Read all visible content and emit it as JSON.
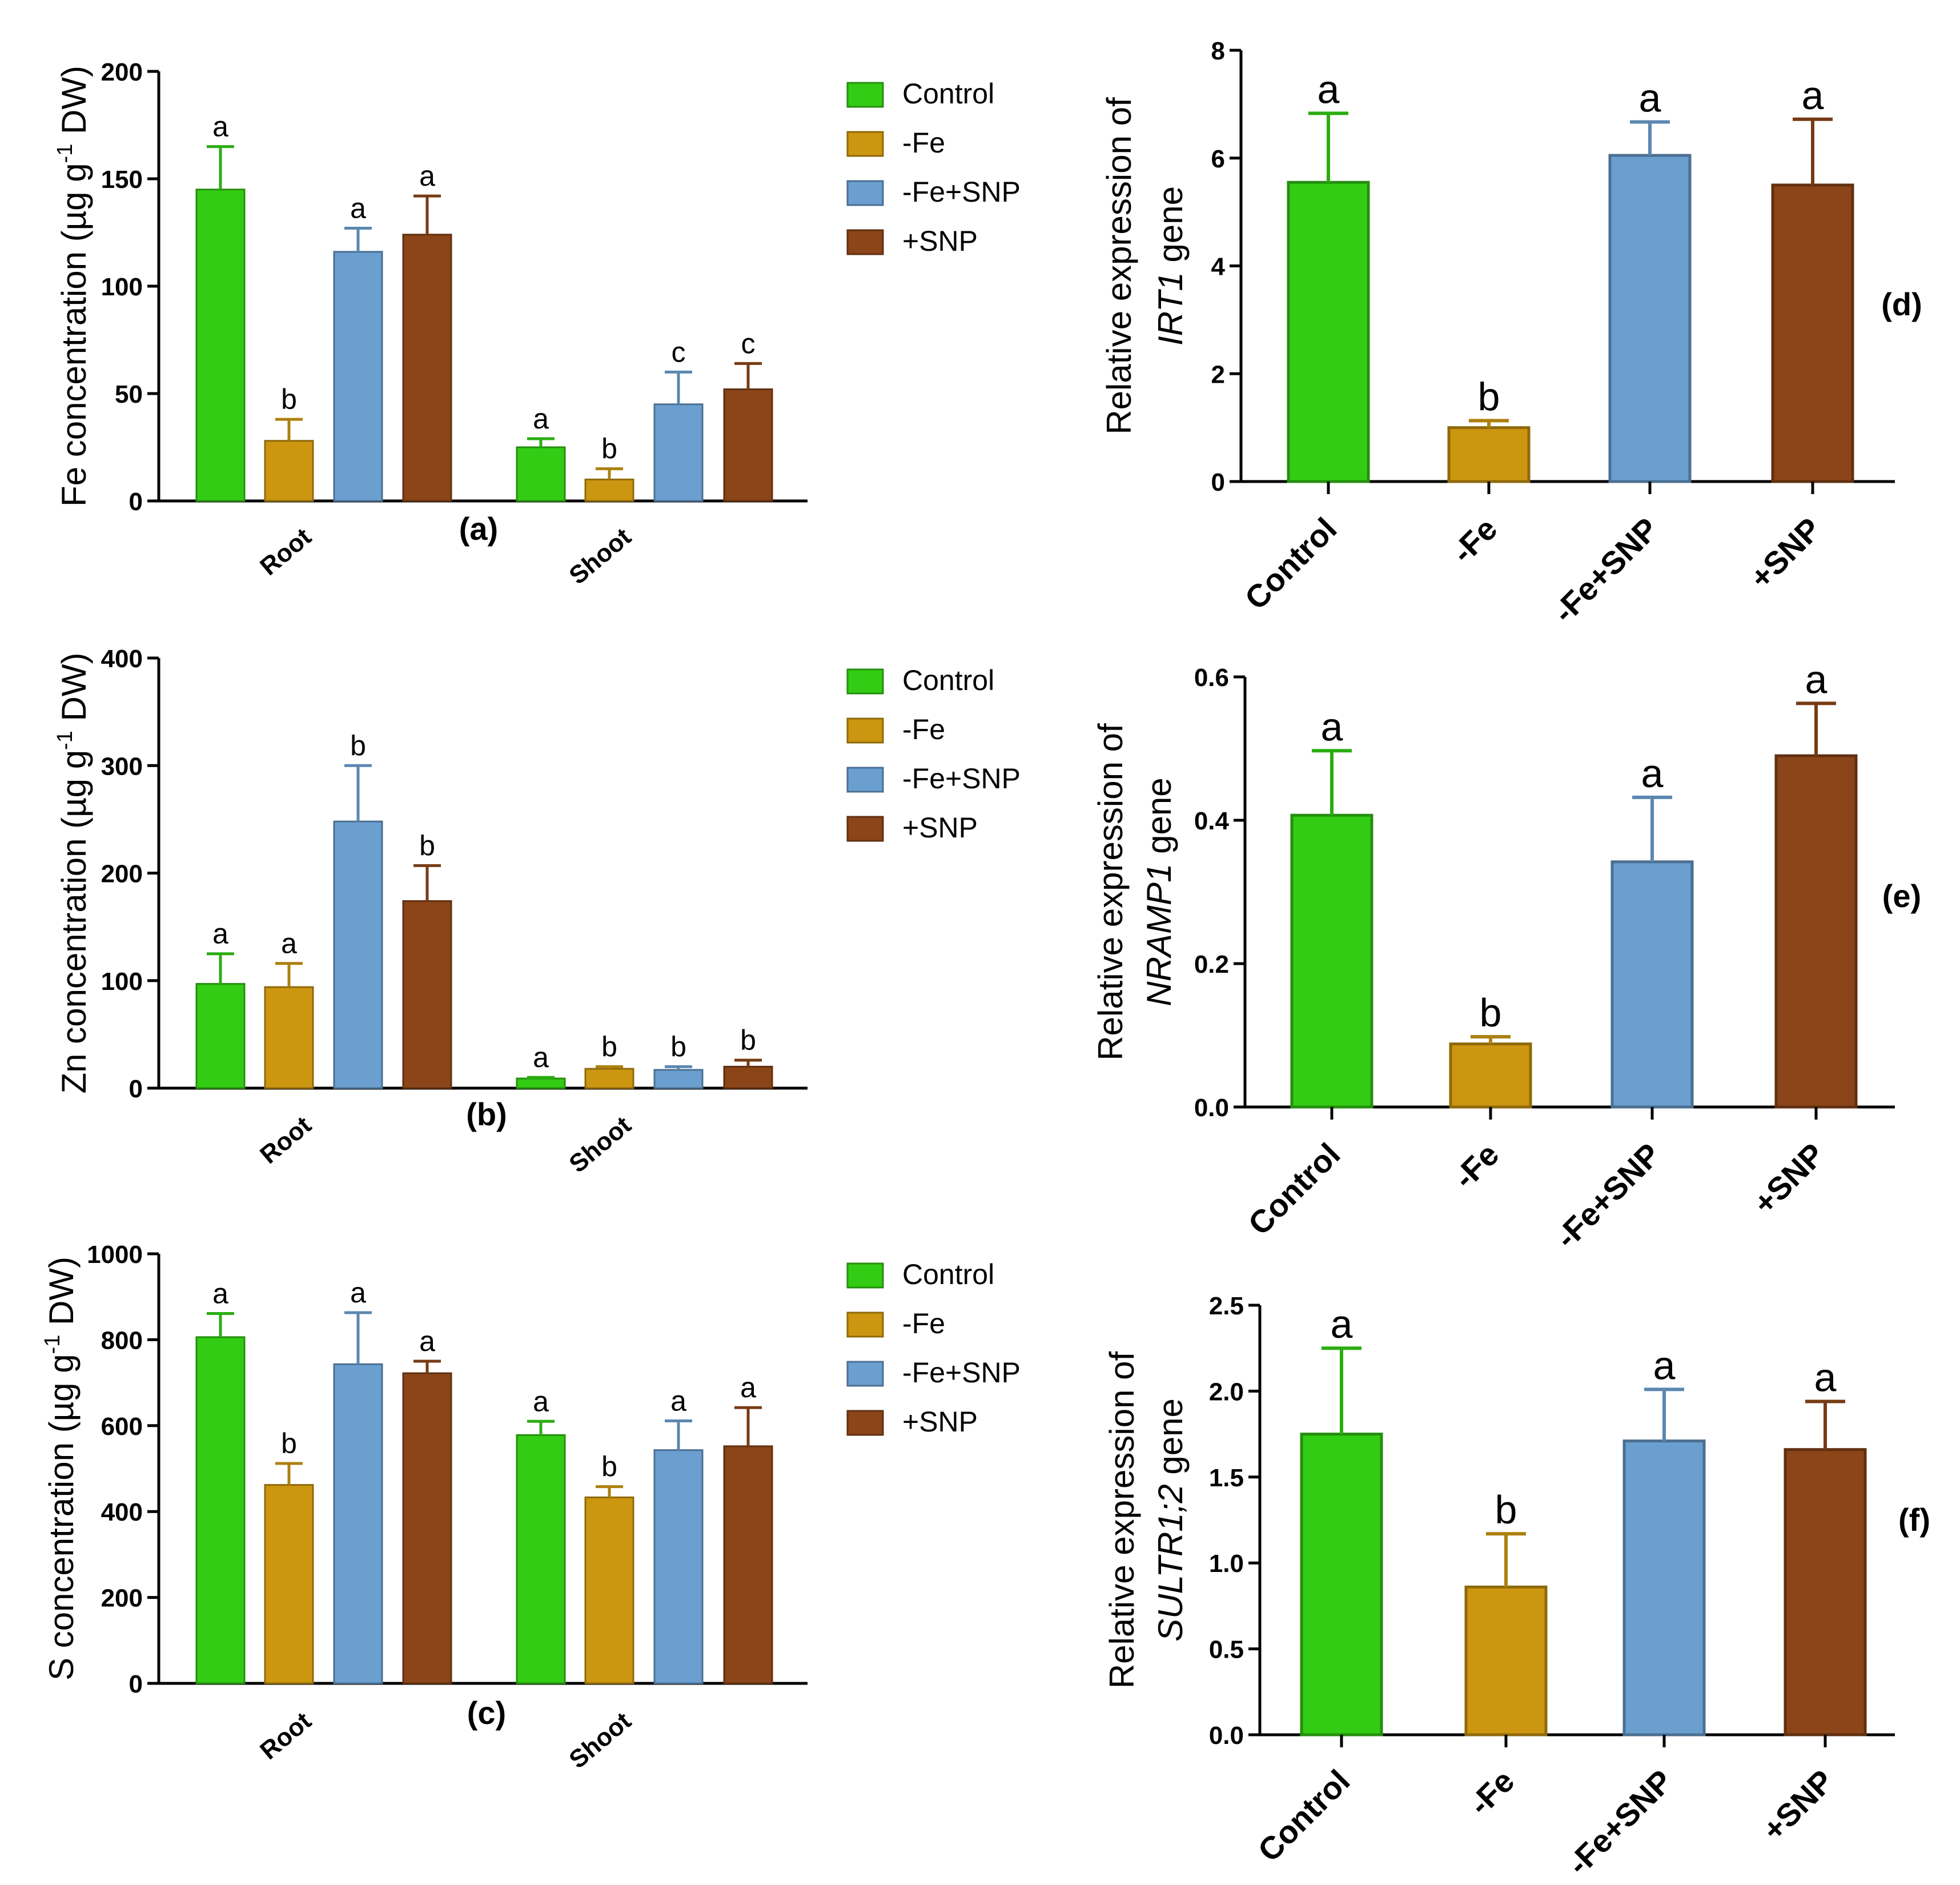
{
  "colors": {
    "Control": "#33cc14",
    "-Fe": "#cc9610",
    "-Fe+SNP": "#6b9fd0",
    "+SNP": "#8b4518"
  },
  "chart_data": [
    {
      "id": "a",
      "type": "bar",
      "panel_label": "(a)",
      "ylabel_parts": [
        "Fe concentration (µg g",
        "-1",
        " DW)"
      ],
      "ylim": [
        0,
        200
      ],
      "yticks": [
        0,
        50,
        100,
        150,
        200
      ],
      "groups": [
        "Root",
        "Shoot"
      ],
      "legend": [
        "Control",
        "-Fe",
        "-Fe+SNP",
        "+SNP"
      ],
      "series": [
        {
          "name": "Control",
          "values": [
            145,
            25
          ],
          "errors": [
            20,
            4
          ],
          "letters": [
            "a",
            "a"
          ]
        },
        {
          "name": "-Fe",
          "values": [
            28,
            10
          ],
          "errors": [
            10,
            5
          ],
          "letters": [
            "b",
            "b"
          ]
        },
        {
          "name": "-Fe+SNP",
          "values": [
            116,
            45
          ],
          "errors": [
            11,
            15
          ],
          "letters": [
            "a",
            "c"
          ]
        },
        {
          "name": "+SNP",
          "values": [
            124,
            52
          ],
          "errors": [
            18,
            12
          ],
          "letters": [
            "a",
            "c"
          ]
        }
      ]
    },
    {
      "id": "b",
      "type": "bar",
      "panel_label": "(b)",
      "ylabel_parts": [
        "Zn concentration (µg g",
        "-1",
        " DW)"
      ],
      "ylim": [
        0,
        400
      ],
      "yticks": [
        0,
        100,
        200,
        300,
        400
      ],
      "groups": [
        "Root",
        "Shoot"
      ],
      "legend": [
        "Control",
        "-Fe",
        "-Fe+SNP",
        "+SNP"
      ],
      "series": [
        {
          "name": "Control",
          "values": [
            97,
            9
          ],
          "errors": [
            28,
            1
          ],
          "letters": [
            "a",
            "a"
          ]
        },
        {
          "name": "-Fe",
          "values": [
            94,
            18
          ],
          "errors": [
            22,
            2
          ],
          "letters": [
            "a",
            "b"
          ]
        },
        {
          "name": "-Fe+SNP",
          "values": [
            248,
            17
          ],
          "errors": [
            52,
            3
          ],
          "letters": [
            "b",
            "b"
          ]
        },
        {
          "name": "+SNP",
          "values": [
            174,
            20
          ],
          "errors": [
            33,
            6
          ],
          "letters": [
            "b",
            "b"
          ]
        }
      ]
    },
    {
      "id": "c",
      "type": "bar",
      "panel_label": "(c)",
      "ylabel_parts": [
        "S concentration (µg g",
        "-1",
        " DW)"
      ],
      "ylim": [
        0,
        1000
      ],
      "yticks": [
        0,
        200,
        400,
        600,
        800,
        1000
      ],
      "groups": [
        "Root",
        "Shoot"
      ],
      "legend": [
        "Control",
        "-Fe",
        "-Fe+SNP",
        "+SNP"
      ],
      "series": [
        {
          "name": "Control",
          "values": [
            806,
            578
          ],
          "errors": [
            55,
            32
          ],
          "letters": [
            "a",
            "a"
          ]
        },
        {
          "name": "-Fe",
          "values": [
            462,
            433
          ],
          "errors": [
            50,
            25
          ],
          "letters": [
            "b",
            "b"
          ]
        },
        {
          "name": "-Fe+SNP",
          "values": [
            743,
            543
          ],
          "errors": [
            120,
            68
          ],
          "letters": [
            "a",
            "a"
          ]
        },
        {
          "name": "+SNP",
          "values": [
            722,
            552
          ],
          "errors": [
            28,
            90
          ],
          "letters": [
            "a",
            "a"
          ]
        }
      ]
    },
    {
      "id": "d",
      "type": "bar",
      "panel_label": "(d)",
      "ylabel_line1": "Relative expression of",
      "ylabel_gene": "IRT1",
      "ylabel_suffix": " gene",
      "ylim": [
        0,
        8
      ],
      "yticks": [
        "0",
        "2",
        "4",
        "6",
        "8"
      ],
      "categories": [
        "Control",
        "-Fe",
        "-Fe+SNP",
        "+SNP"
      ],
      "values": [
        5.55,
        1.0,
        6.05,
        5.5
      ],
      "errors": [
        1.28,
        0.13,
        0.62,
        1.22
      ],
      "letters": [
        "a",
        "b",
        "a",
        "a"
      ]
    },
    {
      "id": "e",
      "type": "bar",
      "panel_label": "(e)",
      "ylabel_line1": "Relative expression of",
      "ylabel_gene": "NRAMP1",
      "ylabel_suffix": " gene",
      "ylim": [
        0,
        0.6
      ],
      "yticks": [
        "0.0",
        "0.2",
        "0.4",
        "0.6"
      ],
      "categories": [
        "Control",
        "-Fe",
        "-Fe+SNP",
        "+SNP"
      ],
      "values": [
        0.407,
        0.088,
        0.342,
        0.49
      ],
      "errors": [
        0.09,
        0.01,
        0.09,
        0.073
      ],
      "letters": [
        "a",
        "b",
        "a",
        "a"
      ]
    },
    {
      "id": "f",
      "type": "bar",
      "panel_label": "(f)",
      "ylabel_line1": "Relative expression of",
      "ylabel_gene": "SULTR1;2",
      "ylabel_suffix": " gene",
      "ylim": [
        0,
        2.5
      ],
      "yticks": [
        "0.0",
        "0.5",
        "1.0",
        "1.5",
        "2.0",
        "2.5"
      ],
      "categories": [
        "Control",
        "-Fe",
        "-Fe+SNP",
        "+SNP"
      ],
      "values": [
        1.75,
        0.86,
        1.71,
        1.66
      ],
      "errors": [
        0.5,
        0.31,
        0.3,
        0.28
      ],
      "letters": [
        "a",
        "b",
        "a",
        "a"
      ]
    }
  ]
}
